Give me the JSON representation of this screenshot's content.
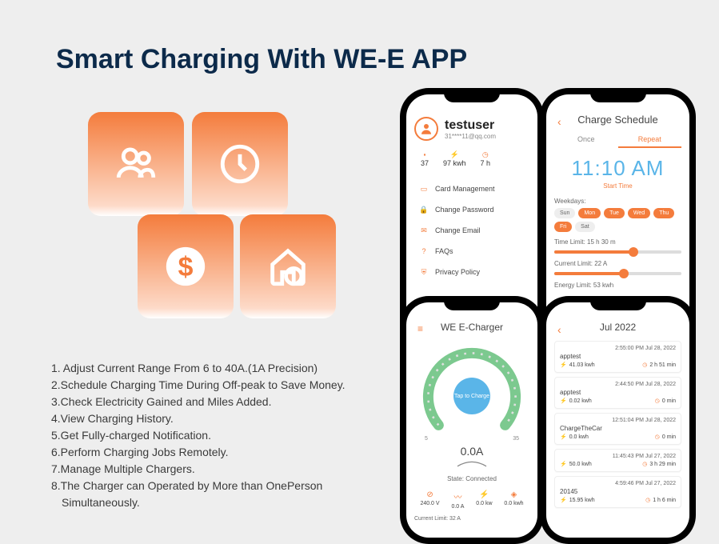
{
  "title": "Smart Charging With WE-E APP",
  "colors": {
    "accent": "#f47c3c",
    "navy": "#0c2a4a",
    "blue": "#5ab5e8",
    "green": "#7cc98f"
  },
  "features": [
    "1. Adjust Current Range From 6 to 40A.(1A Precision)",
    "2.Schedule Charging Time During Off-peak to Save Money.",
    "3.Check Electricity Gained and Miles Added.",
    "4.View Charging History.",
    "5.Get Fully-charged Notification.",
    "6.Perform Charging Jobs Remotely.",
    "7.Manage Multiple Chargers.",
    "8.The Charger can Operated by More than OnePerson",
    "Simultaneously."
  ],
  "feature_cards": {
    "icons": [
      "users",
      "clock",
      "dollar",
      "house"
    ]
  },
  "phone_account": {
    "username": "testuser",
    "email": "31****11@qq.com",
    "stats": [
      {
        "icon": "bars",
        "value": "37"
      },
      {
        "icon": "energy",
        "value": "97 kwh"
      },
      {
        "icon": "clock",
        "value": "7 h"
      }
    ],
    "menu": [
      {
        "icon": "card",
        "label": "Card Management"
      },
      {
        "icon": "lock",
        "label": "Change Password"
      },
      {
        "icon": "mail",
        "label": "Change Email"
      },
      {
        "icon": "help",
        "label": "FAQs"
      },
      {
        "icon": "shield",
        "label": "Privacy Policy"
      }
    ]
  },
  "phone_schedule": {
    "title": "Charge Schedule",
    "tabs": {
      "once": "Once",
      "repeat": "Repeat",
      "active": "repeat"
    },
    "time": "11:10 AM",
    "start_label": "Start Time",
    "weekdays_label": "Weekdays:",
    "weekdays": [
      {
        "label": "Sun",
        "on": false
      },
      {
        "label": "Mon",
        "on": true
      },
      {
        "label": "Tue",
        "on": true
      },
      {
        "label": "Wed",
        "on": true
      },
      {
        "label": "Thu",
        "on": true
      },
      {
        "label": "Fri",
        "on": true
      },
      {
        "label": "Sat",
        "on": false
      }
    ],
    "time_limit": {
      "label": "Time Limit: 15 h 30 m",
      "percent": 62
    },
    "current_limit": {
      "label": "Current Limit: 22 A",
      "percent": 55
    },
    "energy_limit": {
      "label": "Energy Limit: 53 kwh"
    }
  },
  "phone_charger": {
    "title": "WE E-Charger",
    "gauge": {
      "min": "5",
      "max": "35",
      "arc_color": "#7cc98f"
    },
    "tap_label": "Tap to Charge",
    "reading": "0.0A",
    "state": "State: Connected",
    "metrics": [
      {
        "label": "240.0 V"
      },
      {
        "label": "0.0 A"
      },
      {
        "label": "0.0 kw"
      },
      {
        "label": "0.0 kwh"
      }
    ],
    "current_limit": "Current Limit: 32 A"
  },
  "phone_history": {
    "title": "Jul 2022",
    "items": [
      {
        "time": "2:55:00 PM Jul 28, 2022",
        "name": "apptest",
        "energy": "41.03 kwh",
        "duration": "2 h 51 min"
      },
      {
        "time": "2:44:50 PM Jul 28, 2022",
        "name": "apptest",
        "energy": "0.02 kwh",
        "duration": "0 min"
      },
      {
        "time": "12:51:04 PM Jul 28, 2022",
        "name": "ChargeTheCar",
        "energy": "0.0 kwh",
        "duration": "0 min"
      },
      {
        "time": "11:45:43 PM Jul 27, 2022",
        "name": "",
        "energy": "50.0 kwh",
        "duration": "3 h 29 min"
      },
      {
        "time": "4:59:46 PM Jul 27, 2022",
        "name": "20145",
        "energy": "15.95 kwh",
        "duration": "1 h 6 min"
      }
    ]
  }
}
